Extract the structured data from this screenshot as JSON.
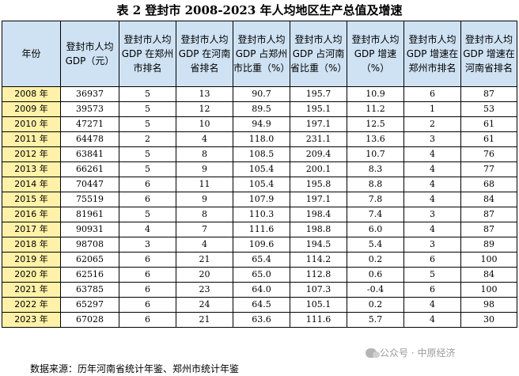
{
  "title": "表 2  登封市 2008-2023 年人均地区生产总值及增速",
  "headers": [
    "年份",
    "登封市人均 GDP（元）",
    "登封市人均 GDP 在郑州市排名",
    "登封市人均 GDP 在河南省排名",
    "登封市人均 GDP 占郑州市比重（%）",
    "登封市人均 GDP 占河南省比重（%）",
    "登封市人均 GDP 增速（%）",
    "登封市人均 GDP 增速在郑州市排名",
    "登封市人均 GDP 增速在河南省排名"
  ],
  "rows": [
    [
      "2008 年",
      "36937",
      "5",
      "13",
      "90.7",
      "195.7",
      "10.9",
      "6",
      "87"
    ],
    [
      "2009 年",
      "39573",
      "5",
      "12",
      "89.5",
      "195.1",
      "11.2",
      "1",
      "53"
    ],
    [
      "2010 年",
      "47271",
      "5",
      "10",
      "94.9",
      "197.1",
      "12.5",
      "2",
      "61"
    ],
    [
      "2011 年",
      "64478",
      "2",
      "4",
      "118.0",
      "231.1",
      "13.6",
      "3",
      "61"
    ],
    [
      "2012 年",
      "63841",
      "5",
      "8",
      "108.5",
      "209.4",
      "10.7",
      "4",
      "76"
    ],
    [
      "2013 年",
      "66261",
      "5",
      "9",
      "105.4",
      "200.1",
      "8.3",
      "4",
      "77"
    ],
    [
      "2014 年",
      "70447",
      "6",
      "11",
      "105.4",
      "195.8",
      "8.8",
      "4",
      "68"
    ],
    [
      "2015 年",
      "75519",
      "6",
      "9",
      "107.9",
      "197.1",
      "7.8",
      "4",
      "84"
    ],
    [
      "2016 年",
      "81961",
      "5",
      "8",
      "110.3",
      "198.4",
      "7.4",
      "3",
      "87"
    ],
    [
      "2017 年",
      "90931",
      "4",
      "7",
      "111.6",
      "198.8",
      "6.0",
      "4",
      "87"
    ],
    [
      "2018 年",
      "98708",
      "3",
      "4",
      "109.6",
      "194.5",
      "5.4",
      "3",
      "89"
    ],
    [
      "2019 年",
      "62065",
      "6",
      "21",
      "65.4",
      "114.2",
      "0.2",
      "6",
      "100"
    ],
    [
      "2020 年",
      "62516",
      "6",
      "20",
      "65.0",
      "112.8",
      "0.6",
      "5",
      "84"
    ],
    [
      "2021 年",
      "63785",
      "6",
      "23",
      "64.0",
      "107.3",
      "-0.4",
      "6",
      "100"
    ],
    [
      "2022 年",
      "65297",
      "6",
      "24",
      "64.5",
      "105.1",
      "0.2",
      "4",
      "98"
    ],
    [
      "2023 年",
      "67028",
      "6",
      "21",
      "63.6",
      "111.6",
      "5.7",
      "4",
      "30"
    ]
  ],
  "source": "数据来源：历年河南省统计年鉴、郑州市统计年鉴",
  "watermark": "公众号 · 中原经济",
  "colors": {
    "header_bg": "#cfe2f3",
    "year_bg": "#fff2a8"
  }
}
